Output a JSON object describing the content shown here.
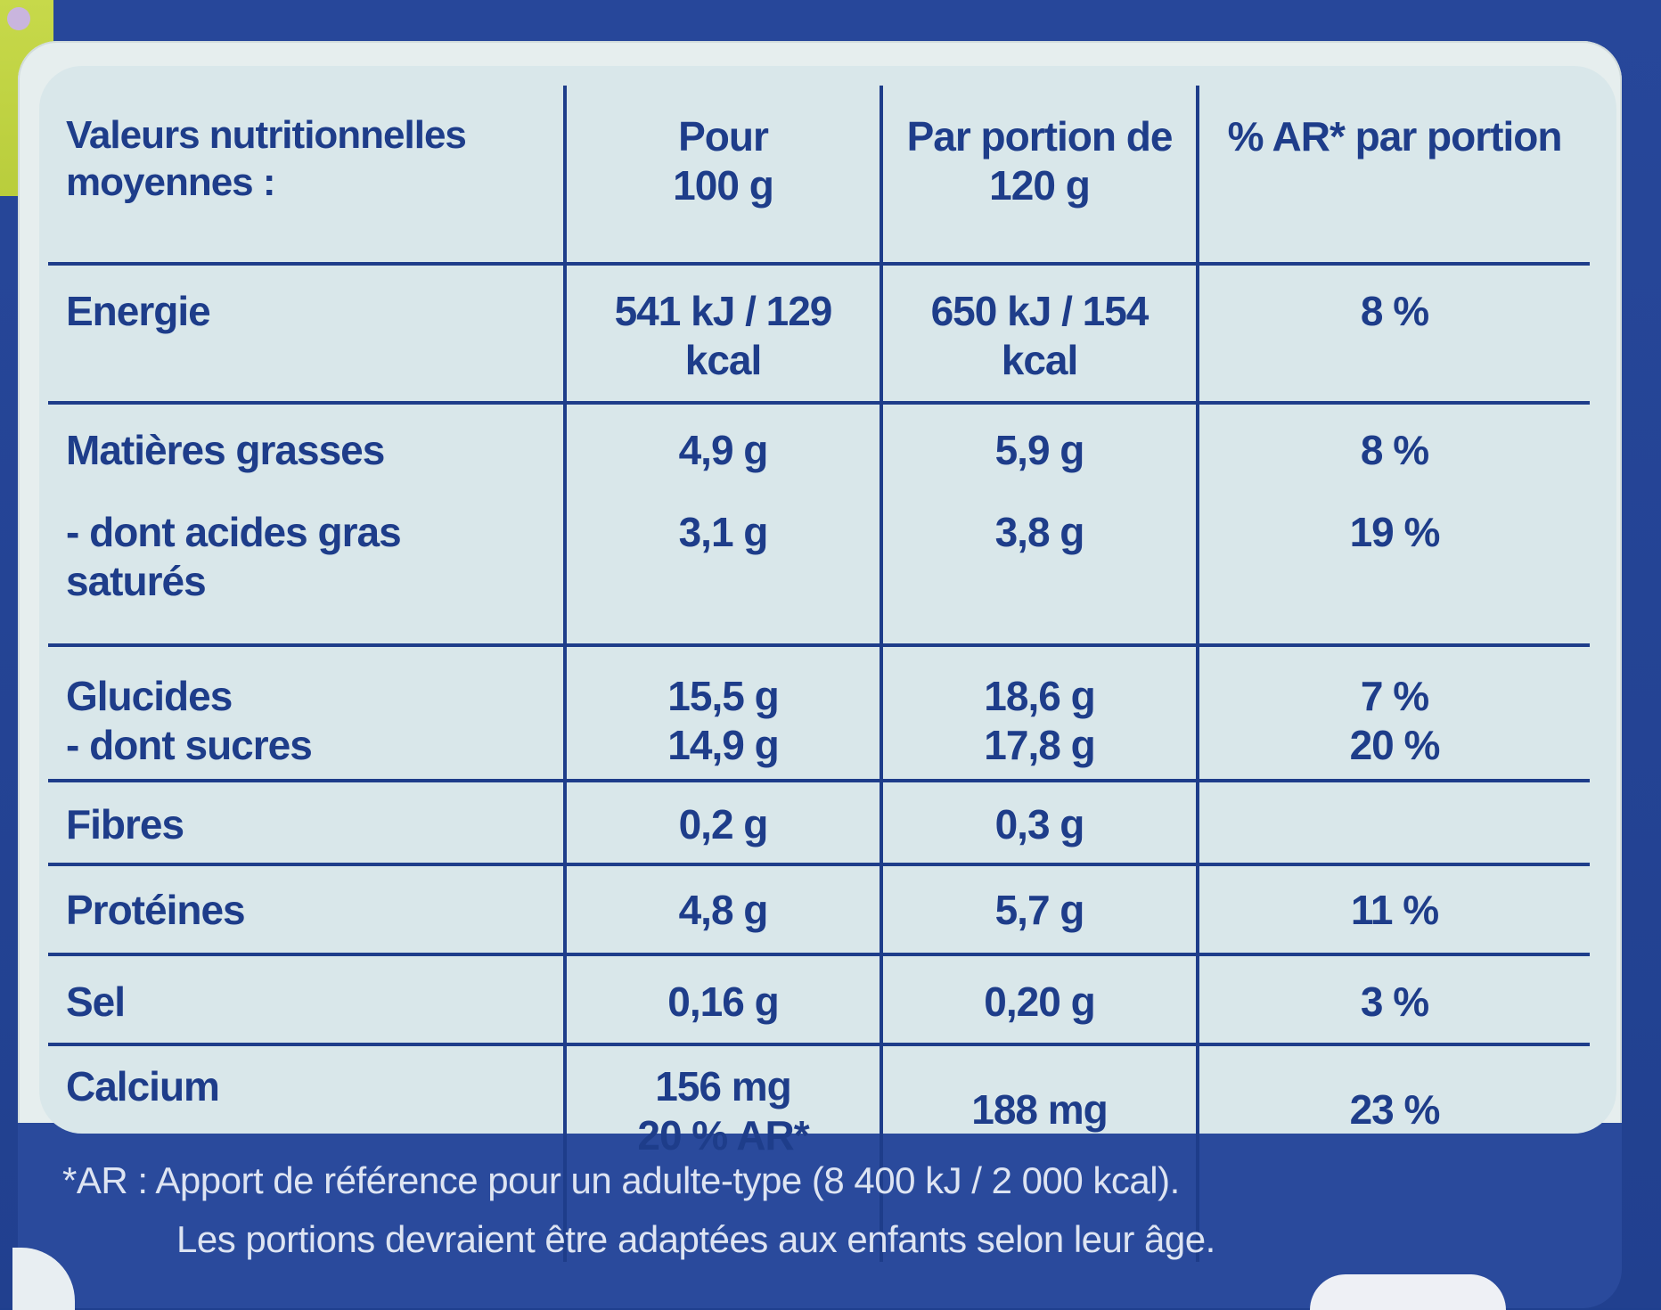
{
  "table": {
    "headers": {
      "col1": [
        "Valeurs nutritionnelles",
        "moyennes :"
      ],
      "col2": [
        "Pour",
        "100 g"
      ],
      "col3": [
        "Par portion de",
        "120 g"
      ],
      "col4": [
        "% AR* par portion"
      ]
    },
    "rows": {
      "energie": {
        "label": "Energie",
        "per100": "541 kJ / 129 kcal",
        "portion": "650 kJ / 154 kcal",
        "ar": "8 %"
      },
      "mg": {
        "label": "Matières grasses",
        "per100": "4,9 g",
        "portion": "5,9 g",
        "ar": "8 %"
      },
      "ags": {
        "label": "- dont acides gras saturés",
        "per100": "3,1 g",
        "portion": "3,8 g",
        "ar": "19 %"
      },
      "glucides": {
        "label": "Glucides",
        "per100": "15,5 g",
        "portion": "18,6 g",
        "ar": "7 %"
      },
      "sucres": {
        "label": "- dont sucres",
        "per100": "14,9 g",
        "portion": "17,8 g",
        "ar": "20 %"
      },
      "fibres": {
        "label": "Fibres",
        "per100": "0,2 g",
        "portion": "0,3 g",
        "ar": ""
      },
      "proteines": {
        "label": "Protéines",
        "per100": "4,8 g",
        "portion": "5,7 g",
        "ar": "11 %"
      },
      "sel": {
        "label": "Sel",
        "per100": "0,16 g",
        "portion": "0,20 g",
        "ar": "3 %"
      },
      "calcium": {
        "label": "Calcium",
        "per100": "156 mg",
        "per100_ar": "20 % AR*",
        "portion": "188 mg",
        "ar": "23 %"
      }
    }
  },
  "footnote": {
    "line1": "*AR : Apport  de référence pour un adulte-type (8 400 kJ / 2 000 kcal).",
    "line2": "Les portions devraient être adaptées aux enfants selon leur âge."
  },
  "colors": {
    "ink": "#1e3d8a",
    "panel": "#d9e7ea",
    "band": "#2a4a9c",
    "accent_green": "#c7d94a"
  }
}
